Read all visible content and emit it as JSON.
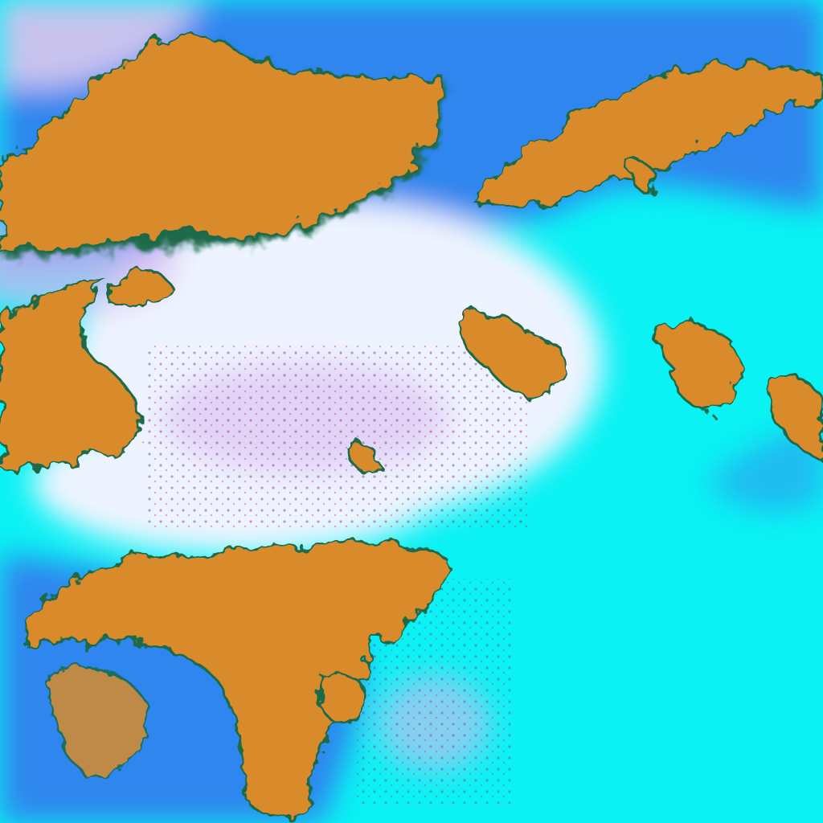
{
  "image": {
    "kind": "false-color satellite imagery",
    "colors": {
      "ocean_cloud_low": "#0af2f4",
      "high_cloud_blue": "#2f86ee",
      "thick_cloud_white": "#eef4ff",
      "haze_lavender": "#d8b8f0",
      "land": "#d98a2a",
      "land_edge": "#1a6a4a",
      "corner_pale": "#c9c3ee"
    }
  }
}
